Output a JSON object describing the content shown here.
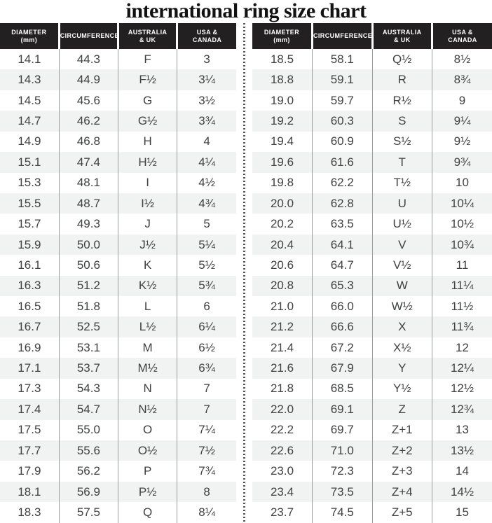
{
  "title": "international ring size chart",
  "colors": {
    "header_bg": "#232021",
    "header_text": "#ffffff",
    "row_alt_bg": "#f1f2f2",
    "body_text": "#3f4142",
    "column_line": "#9b9ea1",
    "divider_dot": "#54565a"
  },
  "headers": [
    {
      "line1": "DIAMETER",
      "line2": "(mm)"
    },
    {
      "line1": "CIRCUMFERENCE",
      "line2": ""
    },
    {
      "line1": "AUSTRALIA",
      "line2": "& UK"
    },
    {
      "line1": "USA &",
      "line2": "CANADA"
    }
  ],
  "chart_data": [
    {
      "type": "table",
      "title": "international ring size chart (left panel)",
      "columns": [
        "Diameter (mm)",
        "Circumference",
        "Australia & UK",
        "USA & Canada"
      ],
      "rows": [
        [
          "14.1",
          "44.3",
          "F",
          "3"
        ],
        [
          "14.3",
          "44.9",
          "F½",
          "3¼"
        ],
        [
          "14.5",
          "45.6",
          "G",
          "3½"
        ],
        [
          "14.7",
          "46.2",
          "G½",
          "3¾"
        ],
        [
          "14.9",
          "46.8",
          "H",
          "4"
        ],
        [
          "15.1",
          "47.4",
          "H½",
          "4¼"
        ],
        [
          "15.3",
          "48.1",
          "I",
          "4½"
        ],
        [
          "15.5",
          "48.7",
          "I½",
          "4¾"
        ],
        [
          "15.7",
          "49.3",
          "J",
          "5"
        ],
        [
          "15.9",
          "50.0",
          "J½",
          "5¼"
        ],
        [
          "16.1",
          "50.6",
          "K",
          "5½"
        ],
        [
          "16.3",
          "51.2",
          "K½",
          "5¾"
        ],
        [
          "16.5",
          "51.8",
          "L",
          "6"
        ],
        [
          "16.7",
          "52.5",
          "L½",
          "6¼"
        ],
        [
          "16.9",
          "53.1",
          "M",
          "6½"
        ],
        [
          "17.1",
          "53.7",
          "M½",
          "6¾"
        ],
        [
          "17.3",
          "54.3",
          "N",
          "7"
        ],
        [
          "17.4",
          "54.7",
          "N½",
          "7"
        ],
        [
          "17.5",
          "55.0",
          "O",
          "7¼"
        ],
        [
          "17.7",
          "55.6",
          "O½",
          "7½"
        ],
        [
          "17.9",
          "56.2",
          "P",
          "7¾"
        ],
        [
          "18.1",
          "56.9",
          "P½",
          "8"
        ],
        [
          "18.3",
          "57.5",
          "Q",
          "8¼"
        ]
      ]
    },
    {
      "type": "table",
      "title": "international ring size chart (right panel)",
      "columns": [
        "Diameter (mm)",
        "Circumference",
        "Australia & UK",
        "USA & Canada"
      ],
      "rows": [
        [
          "18.5",
          "58.1",
          "Q½",
          "8½"
        ],
        [
          "18.8",
          "59.1",
          "R",
          "8¾"
        ],
        [
          "19.0",
          "59.7",
          "R½",
          "9"
        ],
        [
          "19.2",
          "60.3",
          "S",
          "9¼"
        ],
        [
          "19.4",
          "60.9",
          "S½",
          "9½"
        ],
        [
          "19.6",
          "61.6",
          "T",
          "9¾"
        ],
        [
          "19.8",
          "62.2",
          "T½",
          "10"
        ],
        [
          "20.0",
          "62.8",
          "U",
          "10¼"
        ],
        [
          "20.2",
          "63.5",
          "U½",
          "10½"
        ],
        [
          "20.4",
          "64.1",
          "V",
          "10¾"
        ],
        [
          "20.6",
          "64.7",
          "V½",
          "11"
        ],
        [
          "20.8",
          "65.3",
          "W",
          "11¼"
        ],
        [
          "21.0",
          "66.0",
          "W½",
          "11½"
        ],
        [
          "21.2",
          "66.6",
          "X",
          "11¾"
        ],
        [
          "21.4",
          "67.2",
          "X½",
          "12"
        ],
        [
          "21.6",
          "67.9",
          "Y",
          "12¼"
        ],
        [
          "21.8",
          "68.5",
          "Y½",
          "12½"
        ],
        [
          "22.0",
          "69.1",
          "Z",
          "12¾"
        ],
        [
          "22.2",
          "69.7",
          "Z+1",
          "13"
        ],
        [
          "22.6",
          "71.0",
          "Z+2",
          "13½"
        ],
        [
          "23.0",
          "72.3",
          "Z+3",
          "14"
        ],
        [
          "23.4",
          "73.5",
          "Z+4",
          "14½"
        ],
        [
          "23.7",
          "74.5",
          "Z+5",
          "15"
        ]
      ]
    }
  ]
}
